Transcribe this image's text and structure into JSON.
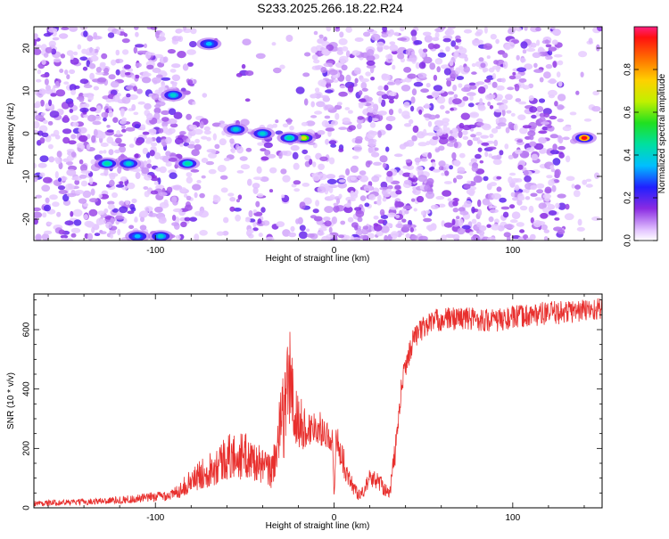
{
  "figure_title": "S233.2025.266.18.22.R24",
  "chart_data": [
    {
      "type": "heatmap",
      "title": "S233.2025.266.18.22.R24",
      "xlabel": "Height of straight line (km)",
      "ylabel": "Frequency (Hz)",
      "xlim": [
        -168,
        150
      ],
      "ylim": [
        -25,
        25
      ],
      "xticks": [
        -100,
        0,
        100
      ],
      "xtick_labels": [
        "-100",
        "0",
        "100"
      ],
      "yticks": [
        -20,
        -10,
        0,
        10,
        20
      ],
      "ytick_labels": [
        "-20",
        "-10",
        "0",
        "10",
        "20"
      ],
      "colorbar": {
        "label": "Normalized spectral amplitude",
        "range": [
          0,
          1
        ],
        "ticks": [
          0.0,
          0.2,
          0.4,
          0.6,
          0.8
        ],
        "tick_labels": [
          "0.0",
          "0.2",
          "0.4",
          "0.6",
          "0.8"
        ]
      },
      "features": [
        {
          "x": 140,
          "y": -1,
          "amplitude": 0.95
        },
        {
          "x": -17,
          "y": -1,
          "amplitude": 0.7
        },
        {
          "x": -25,
          "y": -1,
          "amplitude": 0.45
        },
        {
          "x": -40,
          "y": 0,
          "amplitude": 0.4
        },
        {
          "x": -55,
          "y": 1,
          "amplitude": 0.4
        },
        {
          "x": -82,
          "y": -7,
          "amplitude": 0.45
        },
        {
          "x": -127,
          "y": -7,
          "amplitude": 0.45
        },
        {
          "x": -115,
          "y": -7,
          "amplitude": 0.4
        },
        {
          "x": -90,
          "y": 9,
          "amplitude": 0.4
        },
        {
          "x": -70,
          "y": 21,
          "amplitude": 0.35
        },
        {
          "x": -97,
          "y": -24,
          "amplitude": 0.4
        },
        {
          "x": -110,
          "y": -24,
          "amplitude": 0.35
        }
      ]
    },
    {
      "type": "line",
      "xlabel": "Height of straight line (km)",
      "ylabel": "SNR (10 * v/v)",
      "xlim": [
        -168,
        150
      ],
      "ylim": [
        0,
        720
      ],
      "xticks": [
        -100,
        0,
        100
      ],
      "xtick_labels": [
        "-100",
        "0",
        "100"
      ],
      "yticks": [
        0,
        200,
        400,
        600
      ],
      "ytick_labels": [
        "0",
        "200",
        "400",
        "600"
      ],
      "series": [
        {
          "name": "SNR",
          "color": "#e8302e",
          "x": [
            -168,
            -140,
            -110,
            -90,
            -80,
            -70,
            -60,
            -50,
            -45,
            -40,
            -35,
            -28,
            -25,
            -22,
            -15,
            -10,
            -5,
            -1,
            0,
            1,
            4,
            8,
            12,
            15,
            20,
            25,
            28,
            31,
            35,
            38,
            40,
            45,
            55,
            70,
            90,
            110,
            130,
            150
          ],
          "y": [
            15,
            20,
            30,
            45,
            90,
            130,
            170,
            175,
            160,
            140,
            120,
            320,
            450,
            300,
            260,
            280,
            250,
            230,
            30,
            240,
            180,
            100,
            60,
            40,
            100,
            90,
            70,
            40,
            230,
            420,
            480,
            580,
            630,
            640,
            630,
            650,
            660,
            670
          ],
          "spread": [
            10,
            10,
            15,
            20,
            40,
            60,
            80,
            80,
            70,
            60,
            60,
            150,
            200,
            120,
            60,
            60,
            50,
            40,
            20,
            50,
            60,
            30,
            30,
            20,
            30,
            30,
            30,
            20,
            60,
            40,
            40,
            40,
            40,
            40,
            40,
            40,
            40,
            40
          ]
        }
      ]
    }
  ],
  "colors": {
    "series_line": "#e8302e",
    "axis": "#000000"
  }
}
